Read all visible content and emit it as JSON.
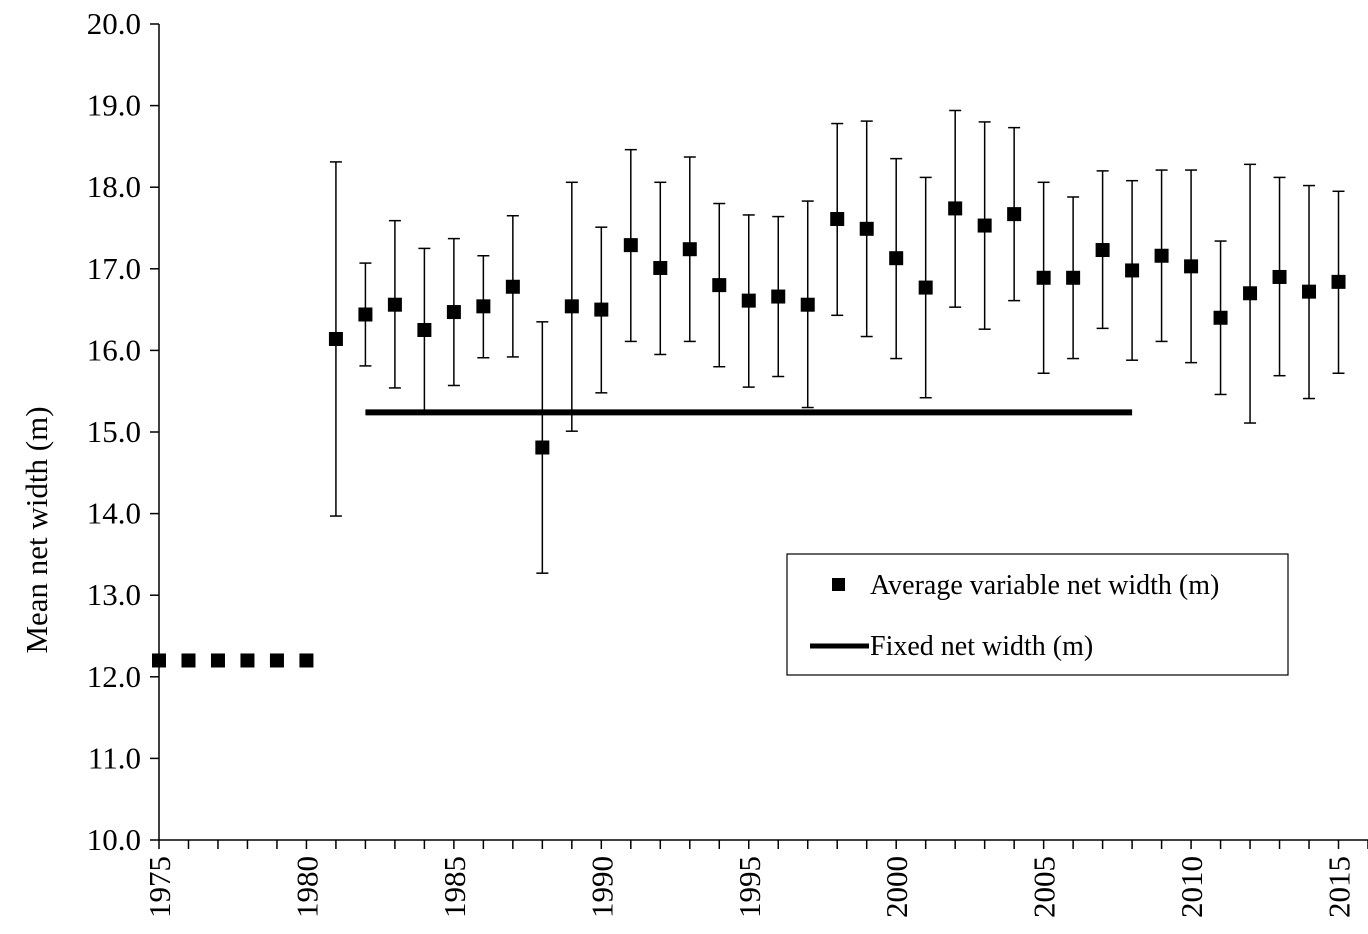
{
  "chart_data": {
    "type": "scatter",
    "title": "",
    "xlabel": "",
    "ylabel": "Mean net width (m)",
    "xlim": [
      1975,
      2016
    ],
    "ylim": [
      10.0,
      20.0
    ],
    "x_ticks": [
      "1975",
      "1980",
      "1985",
      "1990",
      "1995",
      "2000",
      "2005",
      "2010",
      "2015"
    ],
    "y_ticks": [
      "10.0",
      "11.0",
      "12.0",
      "13.0",
      "14.0",
      "15.0",
      "16.0",
      "17.0",
      "18.0",
      "19.0",
      "20.0"
    ],
    "grid": false,
    "legend_position": "right",
    "series": [
      {
        "name": "Average variable net width (m)",
        "marker": "square",
        "color": "#000000",
        "points": [
          {
            "x": 1975,
            "y": 12.2,
            "err_low": null,
            "err_high": null
          },
          {
            "x": 1976,
            "y": 12.2,
            "err_low": null,
            "err_high": null
          },
          {
            "x": 1977,
            "y": 12.2,
            "err_low": null,
            "err_high": null
          },
          {
            "x": 1978,
            "y": 12.2,
            "err_low": null,
            "err_high": null
          },
          {
            "x": 1979,
            "y": 12.2,
            "err_low": null,
            "err_high": null
          },
          {
            "x": 1980,
            "y": 12.2,
            "err_low": null,
            "err_high": null
          },
          {
            "x": 1981,
            "y": 16.14,
            "err_low": 13.97,
            "err_high": 18.31
          },
          {
            "x": 1982,
            "y": 16.44,
            "err_low": 15.81,
            "err_high": 17.07
          },
          {
            "x": 1983,
            "y": 16.56,
            "err_low": 15.54,
            "err_high": 17.59
          },
          {
            "x": 1984,
            "y": 16.25,
            "err_low": 15.25,
            "err_high": 17.25
          },
          {
            "x": 1985,
            "y": 16.47,
            "err_low": 15.57,
            "err_high": 17.37
          },
          {
            "x": 1986,
            "y": 16.54,
            "err_low": 15.91,
            "err_high": 17.16
          },
          {
            "x": 1987,
            "y": 16.78,
            "err_low": 15.92,
            "err_high": 17.65
          },
          {
            "x": 1988,
            "y": 14.81,
            "err_low": 13.27,
            "err_high": 16.35
          },
          {
            "x": 1989,
            "y": 16.54,
            "err_low": 15.01,
            "err_high": 18.06
          },
          {
            "x": 1990,
            "y": 16.5,
            "err_low": 15.48,
            "err_high": 17.51
          },
          {
            "x": 1991,
            "y": 17.29,
            "err_low": 16.11,
            "err_high": 18.46
          },
          {
            "x": 1992,
            "y": 17.01,
            "err_low": 15.95,
            "err_high": 18.06
          },
          {
            "x": 1993,
            "y": 17.24,
            "err_low": 16.11,
            "err_high": 18.37
          },
          {
            "x": 1994,
            "y": 16.8,
            "err_low": 15.8,
            "err_high": 17.8
          },
          {
            "x": 1995,
            "y": 16.61,
            "err_low": 15.55,
            "err_high": 17.66
          },
          {
            "x": 1996,
            "y": 16.66,
            "err_low": 15.68,
            "err_high": 17.64
          },
          {
            "x": 1997,
            "y": 16.56,
            "err_low": 15.3,
            "err_high": 17.83
          },
          {
            "x": 1998,
            "y": 17.61,
            "err_low": 16.43,
            "err_high": 18.78
          },
          {
            "x": 1999,
            "y": 17.49,
            "err_low": 16.17,
            "err_high": 18.81
          },
          {
            "x": 2000,
            "y": 17.13,
            "err_low": 15.9,
            "err_high": 18.35
          },
          {
            "x": 2001,
            "y": 16.77,
            "err_low": 15.42,
            "err_high": 18.12
          },
          {
            "x": 2002,
            "y": 17.74,
            "err_low": 16.53,
            "err_high": 18.94
          },
          {
            "x": 2003,
            "y": 17.53,
            "err_low": 16.26,
            "err_high": 18.8
          },
          {
            "x": 2004,
            "y": 17.67,
            "err_low": 16.61,
            "err_high": 18.73
          },
          {
            "x": 2005,
            "y": 16.89,
            "err_low": 15.72,
            "err_high": 18.06
          },
          {
            "x": 2006,
            "y": 16.89,
            "err_low": 15.9,
            "err_high": 17.88
          },
          {
            "x": 2007,
            "y": 17.23,
            "err_low": 16.27,
            "err_high": 18.2
          },
          {
            "x": 2008,
            "y": 16.98,
            "err_low": 15.88,
            "err_high": 18.08
          },
          {
            "x": 2009,
            "y": 17.16,
            "err_low": 16.11,
            "err_high": 18.21
          },
          {
            "x": 2010,
            "y": 17.03,
            "err_low": 15.85,
            "err_high": 18.21
          },
          {
            "x": 2011,
            "y": 16.4,
            "err_low": 15.46,
            "err_high": 17.34
          },
          {
            "x": 2012,
            "y": 16.7,
            "err_low": 15.11,
            "err_high": 18.28
          },
          {
            "x": 2013,
            "y": 16.9,
            "err_low": 15.69,
            "err_high": 18.12
          },
          {
            "x": 2014,
            "y": 16.72,
            "err_low": 15.41,
            "err_high": 18.02
          },
          {
            "x": 2015,
            "y": 16.84,
            "err_low": 15.72,
            "err_high": 17.95
          }
        ]
      },
      {
        "name": "Fixed net width (m)",
        "type": "line",
        "color": "#000000",
        "x": [
          1982,
          2008
        ],
        "y": [
          15.24,
          15.24
        ]
      }
    ]
  }
}
